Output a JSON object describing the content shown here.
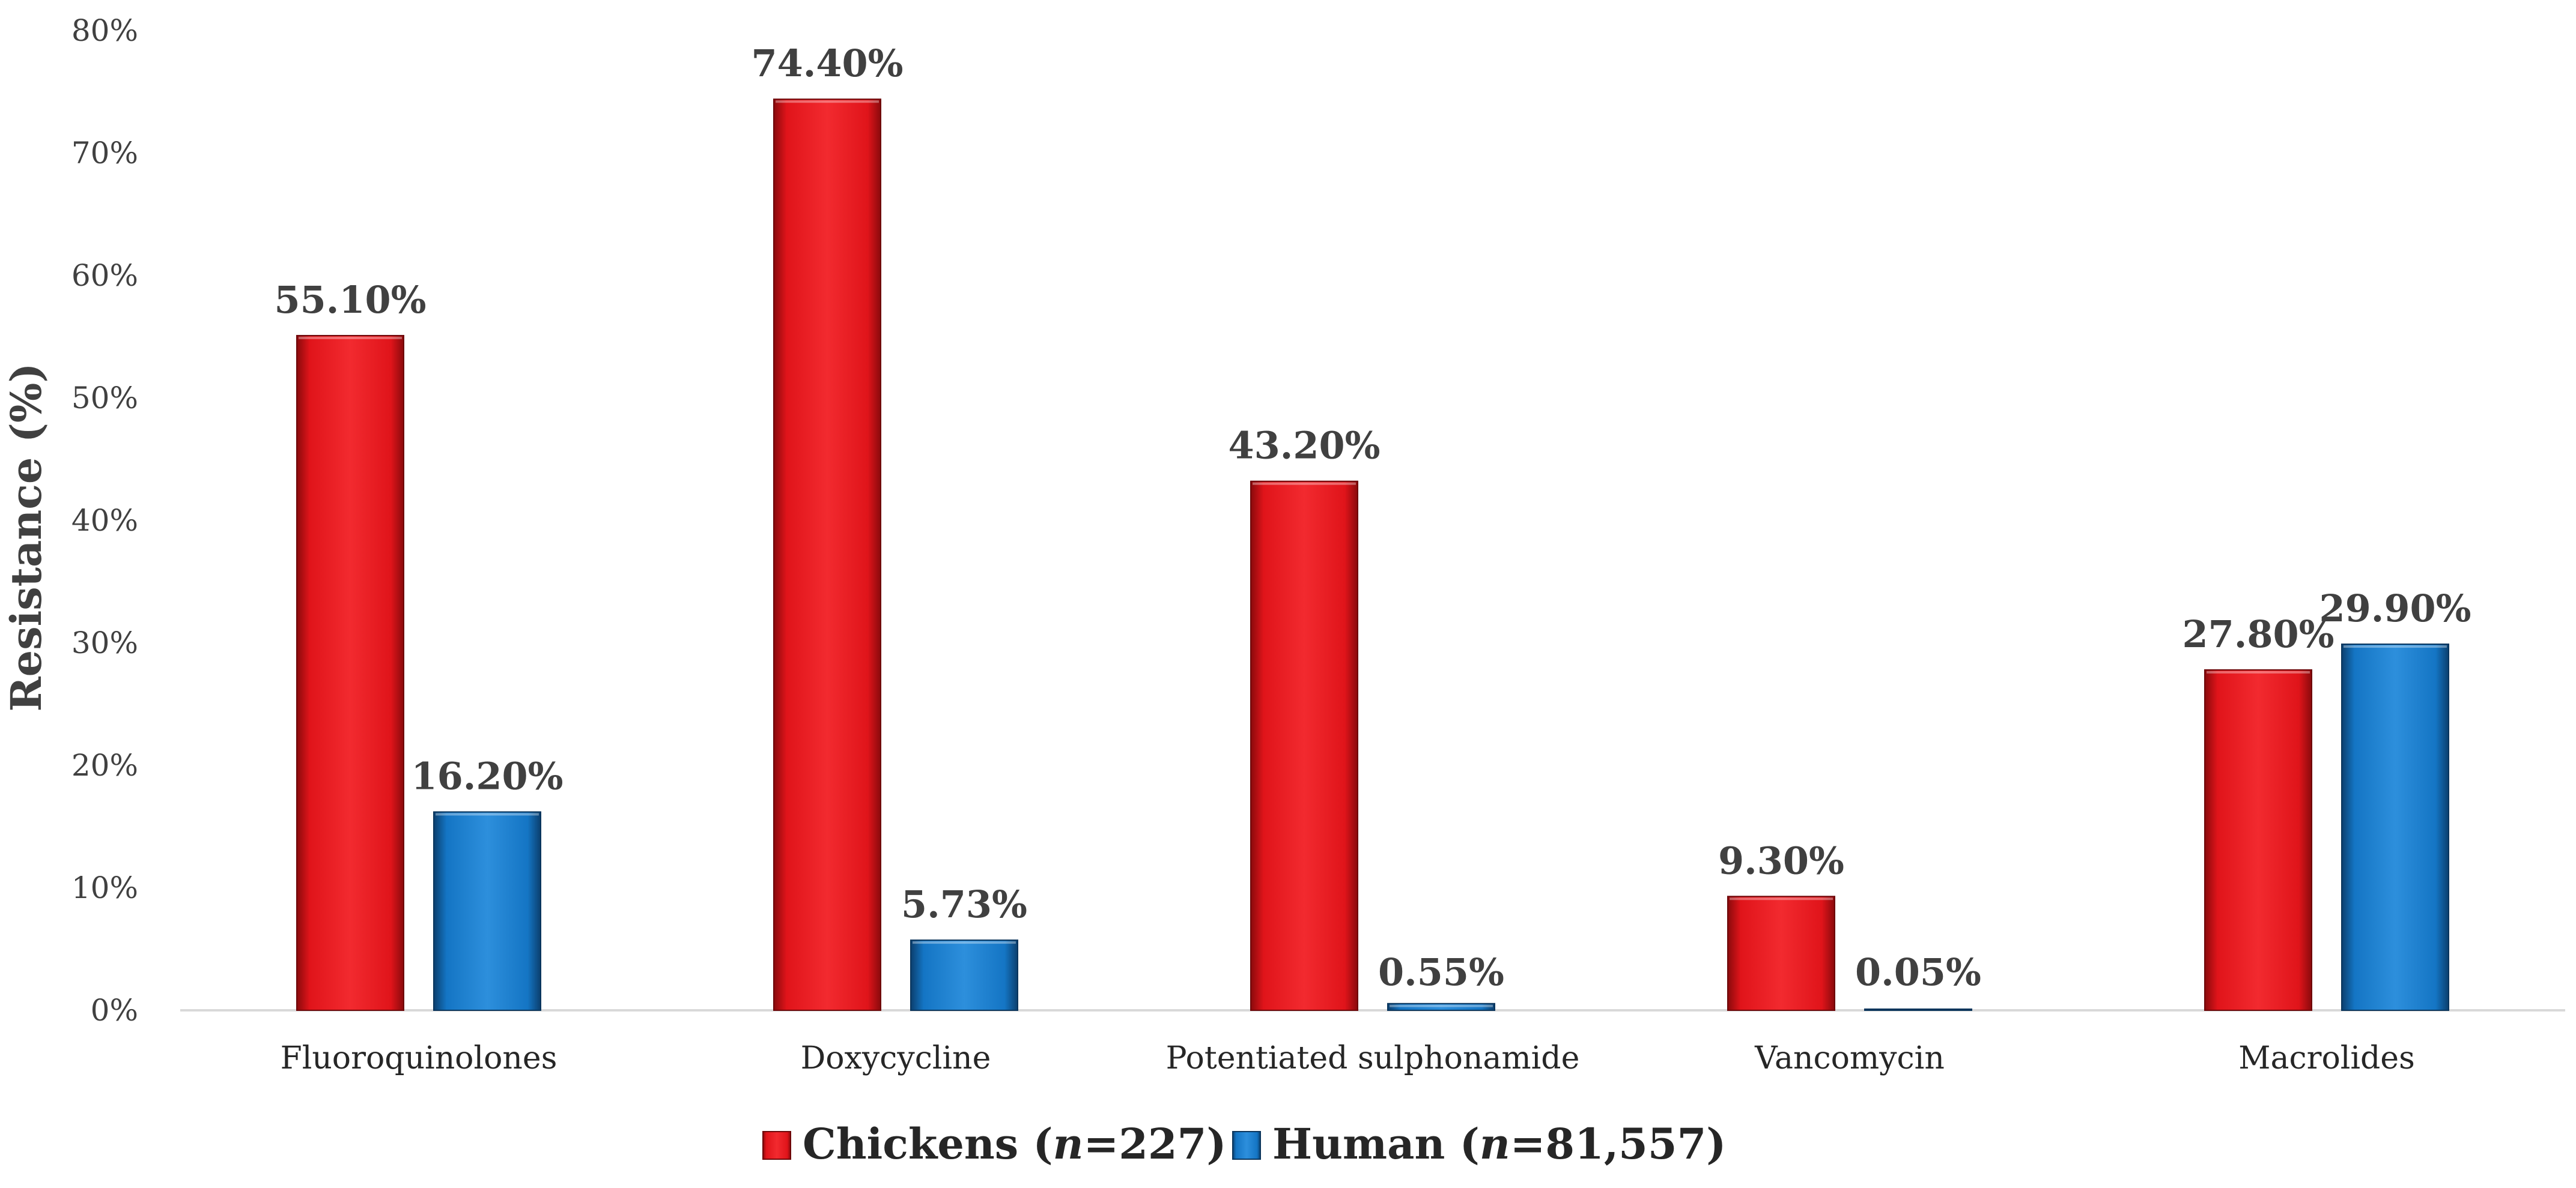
{
  "chart_data": {
    "type": "bar",
    "title": "",
    "xlabel": "",
    "ylabel": "Resistance (%)",
    "ylim": [
      0,
      80
    ],
    "yticks": [
      "0%",
      "10%",
      "20%",
      "30%",
      "40%",
      "50%",
      "60%",
      "70%",
      "80%"
    ],
    "ytick_values": [
      0,
      10,
      20,
      30,
      40,
      50,
      60,
      70,
      80
    ],
    "grid": false,
    "legend_position": "bottom",
    "categories": [
      "Fluoroquinolones",
      "Doxycycline",
      "Potentiated sulphonamide",
      "Vancomycin",
      "Macrolides"
    ],
    "series": [
      {
        "name": "Chickens",
        "legend_main": "Chickens (",
        "legend_n": "n",
        "legend_tail": "=227)",
        "color": "#e0141a",
        "values": [
          55.1,
          74.4,
          43.2,
          9.3,
          27.8
        ],
        "labels": [
          "55.10%",
          "74.40%",
          "43.20%",
          "9.30%",
          "27.80%"
        ]
      },
      {
        "name": "Human",
        "legend_main": "Human (",
        "legend_n": "n",
        "legend_tail": "=81,557)",
        "color": "#1475c4",
        "values": [
          16.2,
          5.73,
          0.55,
          0.05,
          29.9
        ],
        "labels": [
          "16.20%",
          "5.73%",
          "0.55%",
          "0.05%",
          "29.90%"
        ]
      }
    ]
  }
}
